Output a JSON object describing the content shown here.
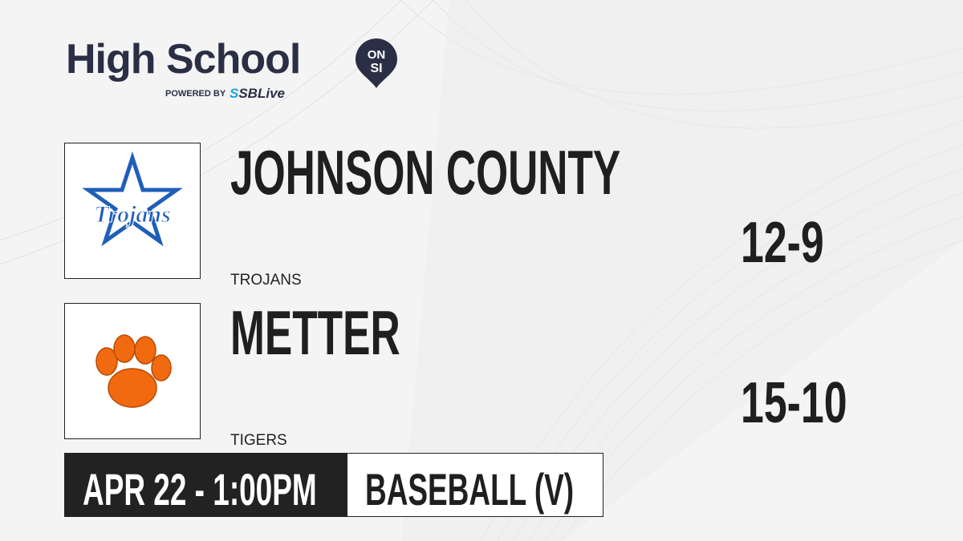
{
  "brand": {
    "title": "High School",
    "badge_top": "ON",
    "badge_bottom": "SI",
    "powered_by": "POWERED BY",
    "partner_s": "S",
    "partner": "SBLive"
  },
  "teams": [
    {
      "name": "JOHNSON COUNTY",
      "mascot": "TROJANS",
      "logo_text": "Trojans",
      "record": "12-9",
      "logo_color": "#1f5fb8"
    },
    {
      "name": "METTER",
      "mascot": "TIGERS",
      "record": "15-10",
      "logo_color": "#f26a10"
    }
  ],
  "game": {
    "datetime": "APR 22 - 1:00PM",
    "sport": "BASEBALL (V)"
  }
}
